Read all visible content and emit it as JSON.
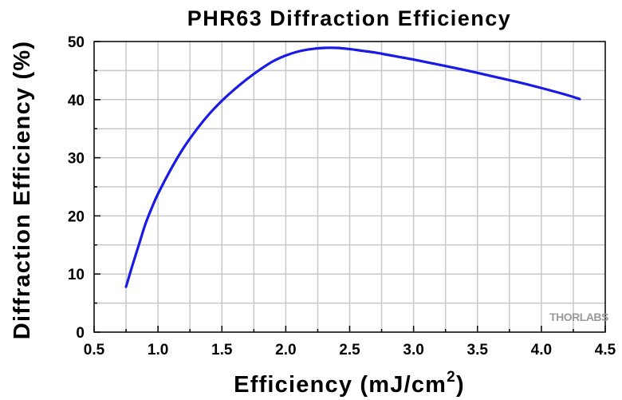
{
  "chart_data": {
    "type": "line",
    "title": "PHR63 Diffraction Efficiency",
    "xlabel": "Efficiency (mJ/cm",
    "xlabel_superscript": "2",
    "xlabel_suffix": ")",
    "ylabel": "Diffraction Efficiency (%)",
    "xlim": [
      0.5,
      4.5
    ],
    "ylim": [
      0,
      50
    ],
    "x_ticks": [
      "0.5",
      "1.0",
      "1.5",
      "2.0",
      "2.5",
      "3.0",
      "3.5",
      "4.0",
      "4.5"
    ],
    "y_ticks": [
      "0",
      "10",
      "20",
      "30",
      "40",
      "50"
    ],
    "grid": true,
    "series": [
      {
        "color": "#1a1ae6",
        "x": [
          0.75,
          0.8,
          0.85,
          0.9,
          0.95,
          1.0,
          1.1,
          1.2,
          1.3,
          1.4,
          1.5,
          1.6,
          1.7,
          1.8,
          1.9,
          2.0,
          2.1,
          2.2,
          2.3,
          2.4,
          2.5,
          2.6,
          2.7,
          2.8,
          2.9,
          3.0,
          3.2,
          3.4,
          3.6,
          3.8,
          4.0,
          4.2,
          4.3
        ],
        "y": [
          7.8,
          11.5,
          15.0,
          18.5,
          21.3,
          23.8,
          28.0,
          31.7,
          34.8,
          37.5,
          39.8,
          41.8,
          43.6,
          45.2,
          46.6,
          47.6,
          48.3,
          48.7,
          48.9,
          48.9,
          48.7,
          48.4,
          48.1,
          47.7,
          47.3,
          46.9,
          46.0,
          45.1,
          44.1,
          43.1,
          42.0,
          40.8,
          40.1
        ]
      }
    ]
  },
  "watermark": "THORLABS"
}
